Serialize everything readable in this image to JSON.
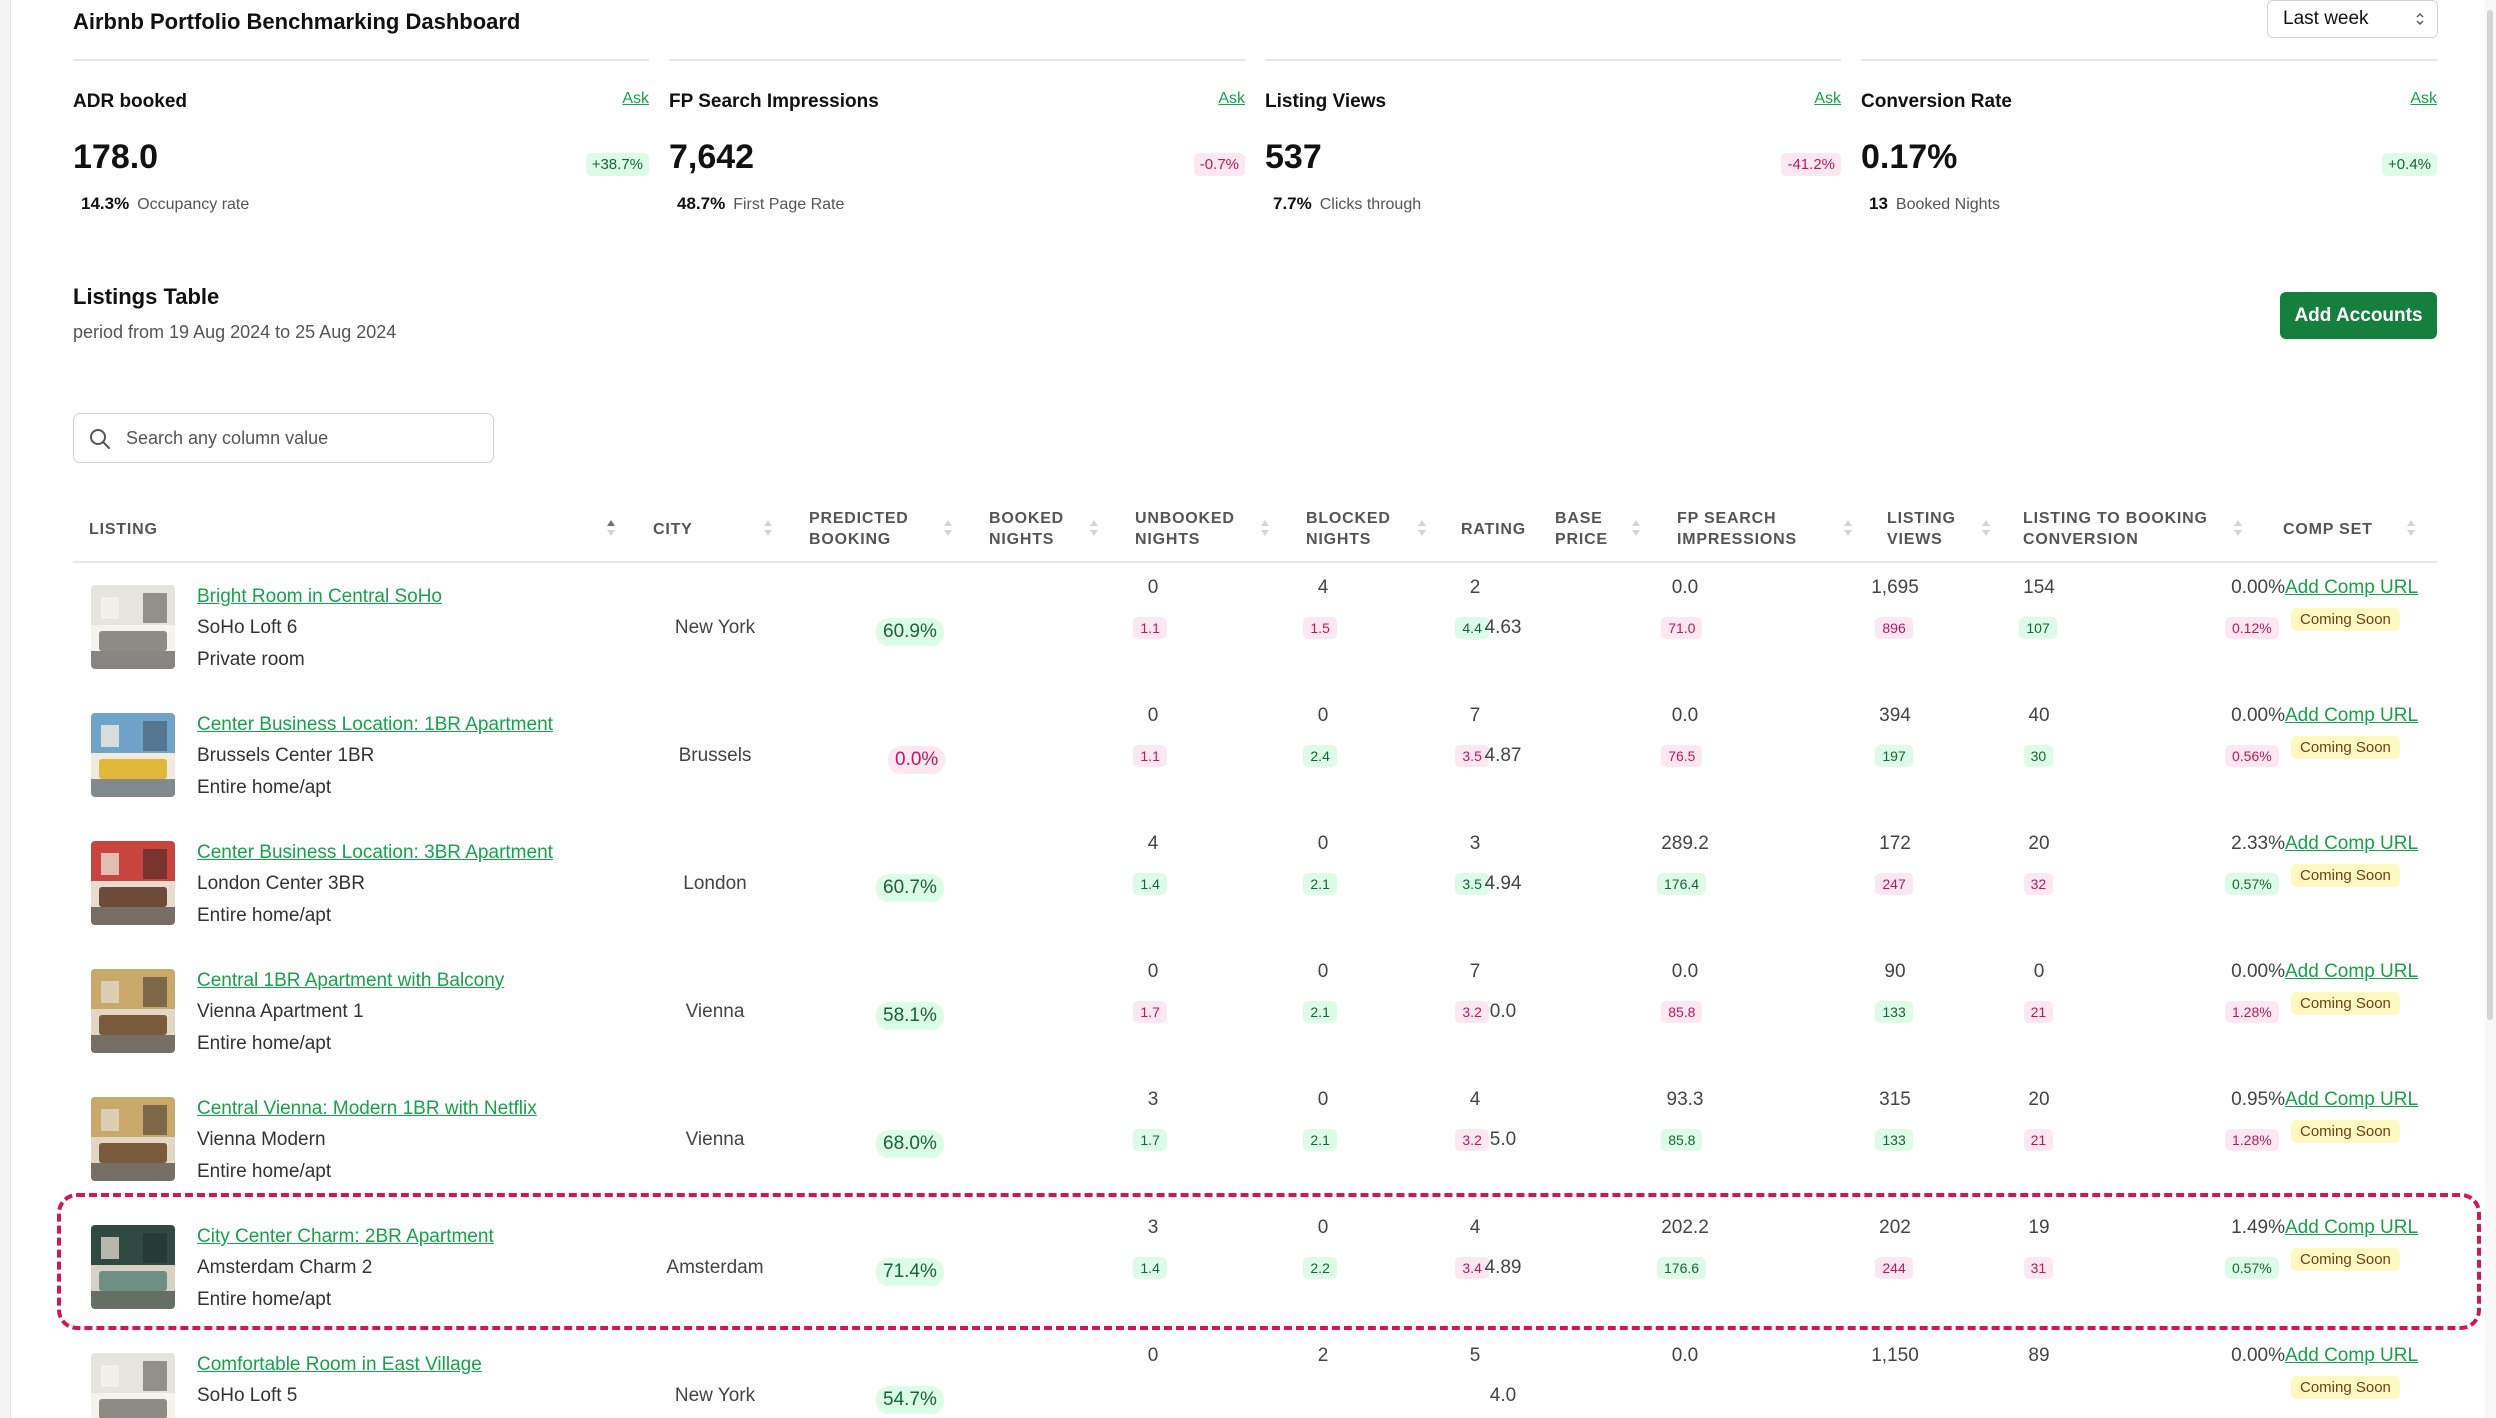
{
  "app": {
    "title": "Airbnb Portfolio Benchmarking Dashboard"
  },
  "period_select": {
    "value": "Last week"
  },
  "metrics": [
    {
      "label": "ADR booked",
      "ask": "Ask",
      "value": "178.0",
      "change": "+38.7%",
      "change_dir": "pos",
      "sub_value": "14.3%",
      "sub_label": "Occupancy rate"
    },
    {
      "label": "FP Search Impressions",
      "ask": "Ask",
      "value": "7,642",
      "change": "-0.7%",
      "change_dir": "neg",
      "sub_value": "48.7%",
      "sub_label": "First Page Rate"
    },
    {
      "label": "Listing Views",
      "ask": "Ask",
      "value": "537",
      "change": "-41.2%",
      "change_dir": "neg",
      "sub_value": "7.7%",
      "sub_label": "Clicks through"
    },
    {
      "label": "Conversion Rate",
      "ask": "Ask",
      "value": "0.17%",
      "change": "+0.4%",
      "change_dir": "pos",
      "sub_value": "13",
      "sub_label": "Booked Nights"
    }
  ],
  "table_section": {
    "title": "Listings Table",
    "period": "period from 19 Aug 2024 to 25 Aug 2024",
    "add_accounts_label": "Add Accounts",
    "search_placeholder": "Search any column value"
  },
  "columns": [
    {
      "key": "listing",
      "label1": "LISTING",
      "label2": ""
    },
    {
      "key": "city",
      "label1": "CITY",
      "label2": ""
    },
    {
      "key": "predicted_booking",
      "label1": "PREDICTED",
      "label2": "BOOKING"
    },
    {
      "key": "booked_nights",
      "label1": "BOOKED",
      "label2": "NIGHTS"
    },
    {
      "key": "unbooked_nights",
      "label1": "UNBOOKED",
      "label2": "NIGHTS"
    },
    {
      "key": "blocked_nights",
      "label1": "BLOCKED",
      "label2": "NIGHTS"
    },
    {
      "key": "rating",
      "label1": "RATING",
      "label2": ""
    },
    {
      "key": "base_price",
      "label1": "BASE",
      "label2": "PRICE"
    },
    {
      "key": "fp_search_impressions",
      "label1": "FP SEARCH",
      "label2": "IMPRESSIONS"
    },
    {
      "key": "listing_views",
      "label1": "LISTING",
      "label2": "VIEWS"
    },
    {
      "key": "listing_to_booking_conversion",
      "label1": "LISTING TO BOOKING",
      "label2": "CONVERSION"
    },
    {
      "key": "comp_set",
      "label1": "COMP SET",
      "label2": ""
    }
  ],
  "rows": [
    {
      "name": "Bright Room in Central SoHo",
      "account": "SoHo Loft 6",
      "type": "Private room",
      "thumb": "bedroom-photo",
      "city": "New York",
      "predicted": "60.9%",
      "predicted_dir": "pos",
      "booked": "0",
      "booked_bench": "1.1",
      "booked_dir": "r",
      "unbooked": "4",
      "unbooked_bench": "1.5",
      "unbooked_dir": "r",
      "blocked": "2",
      "blocked_bench": "4.4",
      "blocked_dir": "g",
      "rating": "4.63",
      "price": "0.0",
      "price_bench": "71.0",
      "price_dir": "r",
      "impressions": "1,695",
      "impressions_bench": "896",
      "impressions_dir": "r",
      "views": "154",
      "views_bench": "107",
      "views_dir": "g",
      "conversion": "0.00%",
      "conversion_bench": "0.12%",
      "conversion_dir": "r",
      "comp_link": "Add Comp URL",
      "comp_badge": "Coming Soon"
    },
    {
      "name": "Center Business Location: 1BR Apartment",
      "account": "Brussels Center 1BR",
      "type": "Entire home/apt",
      "thumb": "living-room-photo",
      "city": "Brussels",
      "predicted": "0.0%",
      "predicted_dir": "neg",
      "booked": "0",
      "booked_bench": "1.1",
      "booked_dir": "r",
      "unbooked": "0",
      "unbooked_bench": "2.4",
      "unbooked_dir": "g",
      "blocked": "7",
      "blocked_bench": "3.5",
      "blocked_dir": "r",
      "rating": "4.87",
      "price": "0.0",
      "price_bench": "76.5",
      "price_dir": "r",
      "impressions": "394",
      "impressions_bench": "197",
      "impressions_dir": "g",
      "views": "40",
      "views_bench": "30",
      "views_dir": "g",
      "conversion": "0.00%",
      "conversion_bench": "0.56%",
      "conversion_dir": "r",
      "comp_link": "Add Comp URL",
      "comp_badge": "Coming Soon"
    },
    {
      "name": "Center Business Location: 3BR Apartment",
      "account": "London Center 3BR",
      "type": "Entire home/apt",
      "thumb": "living-room-photo",
      "city": "London",
      "predicted": "60.7%",
      "predicted_dir": "pos",
      "booked": "4",
      "booked_bench": "1.4",
      "booked_dir": "g",
      "unbooked": "0",
      "unbooked_bench": "2.1",
      "unbooked_dir": "g",
      "blocked": "3",
      "blocked_bench": "3.5",
      "blocked_dir": "g",
      "rating": "4.94",
      "price": "289.2",
      "price_bench": "176.4",
      "price_dir": "g",
      "impressions": "172",
      "impressions_bench": "247",
      "impressions_dir": "r",
      "views": "20",
      "views_bench": "32",
      "views_dir": "r",
      "conversion": "2.33%",
      "conversion_bench": "0.57%",
      "conversion_dir": "g",
      "comp_link": "Add Comp URL",
      "comp_badge": "Coming Soon"
    },
    {
      "name": "Central 1BR Apartment with Balcony",
      "account": "Vienna Apartment 1",
      "type": "Entire home/apt",
      "thumb": "living-room-photo",
      "city": "Vienna",
      "predicted": "58.1%",
      "predicted_dir": "pos",
      "booked": "0",
      "booked_bench": "1.7",
      "booked_dir": "r",
      "unbooked": "0",
      "unbooked_bench": "2.1",
      "unbooked_dir": "g",
      "blocked": "7",
      "blocked_bench": "3.2",
      "blocked_dir": "r",
      "rating": "0.0",
      "price": "0.0",
      "price_bench": "85.8",
      "price_dir": "r",
      "impressions": "90",
      "impressions_bench": "133",
      "impressions_dir": "g",
      "views": "0",
      "views_bench": "21",
      "views_dir": "r",
      "conversion": "0.00%",
      "conversion_bench": "1.28%",
      "conversion_dir": "r",
      "comp_link": "Add Comp URL",
      "comp_badge": "Coming Soon"
    },
    {
      "name": "Central Vienna: Modern 1BR with Netflix",
      "account": "Vienna Modern",
      "type": "Entire home/apt",
      "thumb": "living-room-photo",
      "city": "Vienna",
      "predicted": "68.0%",
      "predicted_dir": "pos",
      "booked": "3",
      "booked_bench": "1.7",
      "booked_dir": "g",
      "unbooked": "0",
      "unbooked_bench": "2.1",
      "unbooked_dir": "g",
      "blocked": "4",
      "blocked_bench": "3.2",
      "blocked_dir": "r",
      "rating": "5.0",
      "price": "93.3",
      "price_bench": "85.8",
      "price_dir": "g",
      "impressions": "315",
      "impressions_bench": "133",
      "impressions_dir": "g",
      "views": "20",
      "views_bench": "21",
      "views_dir": "r",
      "conversion": "0.95%",
      "conversion_bench": "1.28%",
      "conversion_dir": "r",
      "comp_link": "Add Comp URL",
      "comp_badge": "Coming Soon"
    },
    {
      "name": "City Center Charm: 2BR Apartment",
      "account": "Amsterdam Charm 2",
      "type": "Entire home/apt",
      "thumb": "kitchen-photo",
      "city": "Amsterdam",
      "predicted": "71.4%",
      "predicted_dir": "pos",
      "booked": "3",
      "booked_bench": "1.4",
      "booked_dir": "g",
      "unbooked": "0",
      "unbooked_bench": "2.2",
      "unbooked_dir": "g",
      "blocked": "4",
      "blocked_bench": "3.4",
      "blocked_dir": "r",
      "rating": "4.89",
      "price": "202.2",
      "price_bench": "176.6",
      "price_dir": "g",
      "impressions": "202",
      "impressions_bench": "244",
      "impressions_dir": "r",
      "views": "19",
      "views_bench": "31",
      "views_dir": "r",
      "conversion": "1.49%",
      "conversion_bench": "0.57%",
      "conversion_dir": "g",
      "comp_link": "Add Comp URL",
      "comp_badge": "Coming Soon"
    },
    {
      "name": "Comfortable Room in East Village",
      "account": "SoHo Loft 5",
      "type": "",
      "thumb": "bedroom-photo",
      "city": "New York",
      "predicted": "54.7%",
      "predicted_dir": "pos",
      "booked": "0",
      "booked_bench": "",
      "booked_dir": "r",
      "unbooked": "2",
      "unbooked_bench": "",
      "unbooked_dir": "r",
      "blocked": "5",
      "blocked_bench": "",
      "blocked_dir": "g",
      "rating": "4.0",
      "price": "0.0",
      "price_bench": "",
      "price_dir": "r",
      "impressions": "1,150",
      "impressions_bench": "",
      "impressions_dir": "r",
      "views": "89",
      "views_bench": "",
      "views_dir": "g",
      "conversion": "0.00%",
      "conversion_bench": "",
      "conversion_dir": "r",
      "comp_link": "Add Comp URL",
      "comp_badge": "Coming Soon"
    }
  ],
  "highlighted_row_index": 5,
  "colors": {
    "accent": "#16a34a",
    "button": "#15803d",
    "highlight": "#d3174f",
    "pos_bg": "#dcfce7",
    "neg_bg": "#fce7f3",
    "badge_bg": "#fef9c3"
  }
}
